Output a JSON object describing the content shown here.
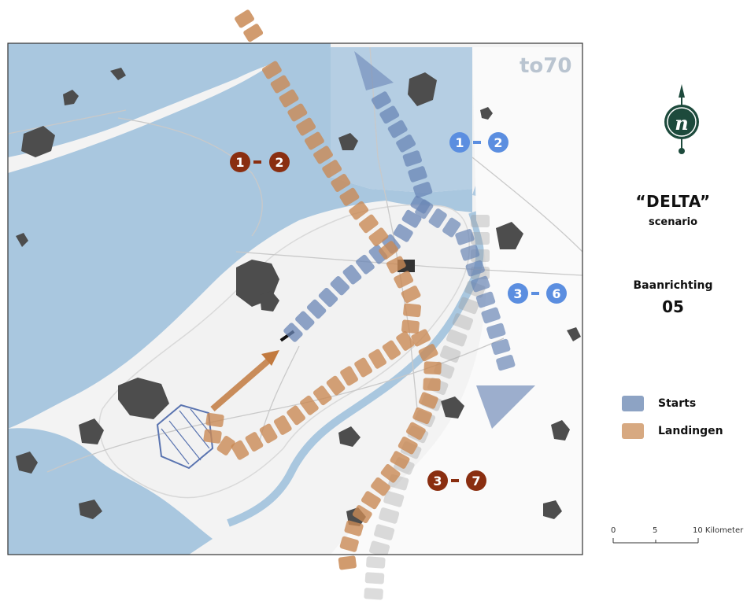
{
  "logo": {
    "text": "to70"
  },
  "north_arrow": {
    "icon": "north-arrow-icon",
    "letter": "n"
  },
  "scenario": {
    "title": "“DELTA”",
    "subtitle": "scenario"
  },
  "runway": {
    "label": "Baanrichting",
    "number": "05"
  },
  "legend": {
    "items": [
      {
        "label": "Starts",
        "color": "#8da3c4"
      },
      {
        "label": "Landingen",
        "color": "#d7a981"
      }
    ]
  },
  "scale_bar": {
    "ticks": [
      "0",
      "5",
      "10 Kilometer"
    ]
  },
  "route_labels": {
    "landing_north": {
      "a": "1",
      "b": "2"
    },
    "start_north": {
      "a": "1",
      "b": "2"
    },
    "start_east": {
      "a": "3",
      "b": "6"
    },
    "landing_south": {
      "a": "3",
      "b": "7"
    }
  },
  "colors": {
    "water": "#a9c7df",
    "land": "#f2f2f2",
    "urban": "#555555",
    "starts_fill": "#6a86b5",
    "landings_fill": "#c98a55",
    "landing_badge": "#8a2e10",
    "start_badge": "#5b8ee0"
  }
}
